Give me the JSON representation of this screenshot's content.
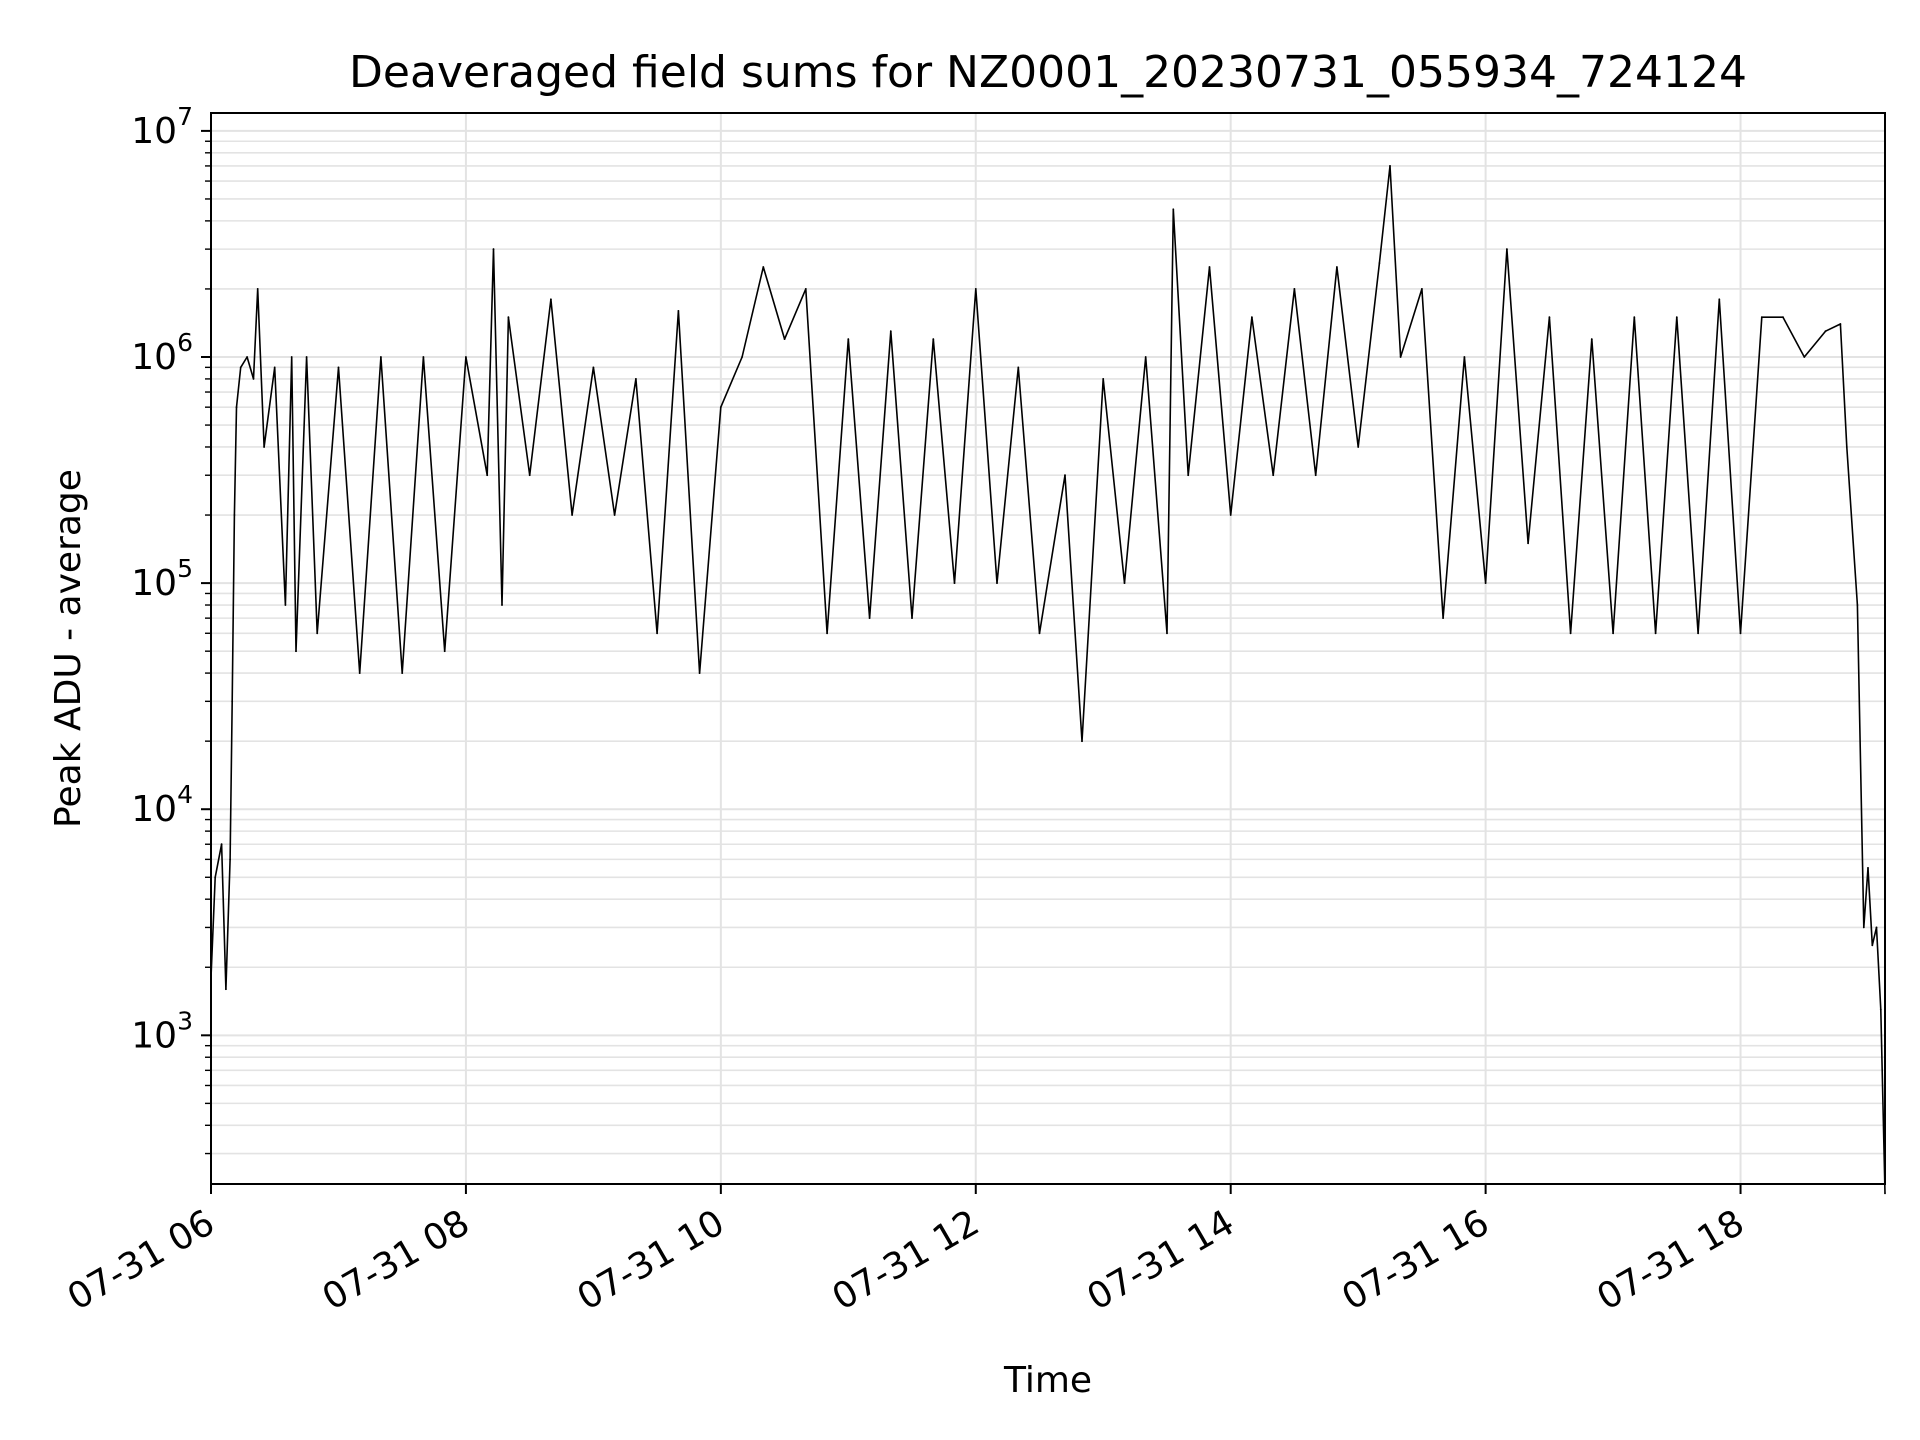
{
  "chart_data": {
    "type": "line",
    "title": "Deaveraged field sums for NZ0001_20230731_055934_724124",
    "xlabel": "Time",
    "ylabel": "Peak ADU - average",
    "x_scale": "time",
    "y_scale": "log",
    "xlim": [
      "2023-07-31 06:00",
      "2023-07-31 19:08"
    ],
    "ylim": [
      220,
      12000000
    ],
    "grid": true,
    "legend": false,
    "line_color": "#000000",
    "grid_color": "#e3e3e3",
    "x_tick_labels": [
      "07-31 06",
      "07-31 08",
      "07-31 10",
      "07-31 12",
      "07-31 14",
      "07-31 16",
      "07-31 18"
    ],
    "y_ticks": [
      {
        "base": "10",
        "exp": "3"
      },
      {
        "base": "10",
        "exp": "4"
      },
      {
        "base": "10",
        "exp": "5"
      },
      {
        "base": "10",
        "exp": "6"
      },
      {
        "base": "10",
        "exp": "7"
      }
    ],
    "series": [
      {
        "x": [
          "2023-07-31 06:00",
          "2023-07-31 06:02",
          "2023-07-31 06:05",
          "2023-07-31 06:07",
          "2023-07-31 06:09",
          "2023-07-31 06:10",
          "2023-07-31 06:11",
          "2023-07-31 06:12",
          "2023-07-31 06:14",
          "2023-07-31 06:17",
          "2023-07-31 06:20",
          "2023-07-31 06:22",
          "2023-07-31 06:25",
          "2023-07-31 06:30",
          "2023-07-31 06:35",
          "2023-07-31 06:38",
          "2023-07-31 06:40",
          "2023-07-31 06:45",
          "2023-07-31 06:50",
          "2023-07-31 07:00",
          "2023-07-31 07:10",
          "2023-07-31 07:20",
          "2023-07-31 07:30",
          "2023-07-31 07:40",
          "2023-07-31 07:50",
          "2023-07-31 08:00",
          "2023-07-31 08:10",
          "2023-07-31 08:13",
          "2023-07-31 08:17",
          "2023-07-31 08:20",
          "2023-07-31 08:30",
          "2023-07-31 08:40",
          "2023-07-31 08:50",
          "2023-07-31 09:00",
          "2023-07-31 09:10",
          "2023-07-31 09:20",
          "2023-07-31 09:30",
          "2023-07-31 09:40",
          "2023-07-31 09:50",
          "2023-07-31 10:00",
          "2023-07-31 10:10",
          "2023-07-31 10:20",
          "2023-07-31 10:30",
          "2023-07-31 10:40",
          "2023-07-31 10:50",
          "2023-07-31 11:00",
          "2023-07-31 11:10",
          "2023-07-31 11:20",
          "2023-07-31 11:30",
          "2023-07-31 11:40",
          "2023-07-31 11:50",
          "2023-07-31 12:00",
          "2023-07-31 12:10",
          "2023-07-31 12:20",
          "2023-07-31 12:30",
          "2023-07-31 12:42",
          "2023-07-31 12:50",
          "2023-07-31 13:00",
          "2023-07-31 13:10",
          "2023-07-31 13:20",
          "2023-07-31 13:30",
          "2023-07-31 13:33",
          "2023-07-31 13:40",
          "2023-07-31 13:50",
          "2023-07-31 14:00",
          "2023-07-31 14:10",
          "2023-07-31 14:20",
          "2023-07-31 14:30",
          "2023-07-31 14:40",
          "2023-07-31 14:50",
          "2023-07-31 15:00",
          "2023-07-31 15:10",
          "2023-07-31 15:15",
          "2023-07-31 15:20",
          "2023-07-31 15:30",
          "2023-07-31 15:40",
          "2023-07-31 15:50",
          "2023-07-31 16:00",
          "2023-07-31 16:10",
          "2023-07-31 16:20",
          "2023-07-31 16:30",
          "2023-07-31 16:40",
          "2023-07-31 16:50",
          "2023-07-31 17:00",
          "2023-07-31 17:10",
          "2023-07-31 17:20",
          "2023-07-31 17:30",
          "2023-07-31 17:40",
          "2023-07-31 17:50",
          "2023-07-31 18:00",
          "2023-07-31 18:10",
          "2023-07-31 18:20",
          "2023-07-31 18:30",
          "2023-07-31 18:40",
          "2023-07-31 18:47",
          "2023-07-31 18:50",
          "2023-07-31 18:55",
          "2023-07-31 18:58",
          "2023-07-31 19:00",
          "2023-07-31 19:02",
          "2023-07-31 19:04",
          "2023-07-31 19:06",
          "2023-07-31 19:08"
        ],
        "y": [
          1800,
          5000,
          7000,
          1600,
          6000,
          30000,
          200000,
          600000,
          900000,
          1000000,
          800000,
          2000000,
          400000,
          900000,
          80000,
          1000000,
          50000,
          1000000,
          60000,
          900000,
          40000,
          1000000,
          40000,
          1000000,
          50000,
          1000000,
          300000,
          3000000,
          80000,
          1500000,
          300000,
          1800000,
          200000,
          900000,
          200000,
          800000,
          60000,
          1600000,
          40000,
          600000,
          1000000,
          2500000,
          1200000,
          2000000,
          60000,
          1200000,
          70000,
          1300000,
          70000,
          1200000,
          100000,
          2000000,
          100000,
          900000,
          60000,
          300000,
          20000,
          800000,
          100000,
          1000000,
          60000,
          4500000,
          300000,
          2500000,
          200000,
          1500000,
          300000,
          2000000,
          300000,
          2500000,
          400000,
          2600000,
          7000000,
          1000000,
          2000000,
          70000,
          1000000,
          100000,
          3000000,
          150000,
          1500000,
          60000,
          1200000,
          60000,
          1500000,
          60000,
          1500000,
          60000,
          1800000,
          60000,
          1500000,
          1500000,
          1000000,
          1300000,
          1400000,
          400000,
          80000,
          3000,
          5500,
          2500,
          3000,
          1300,
          200
        ]
      }
    ]
  }
}
